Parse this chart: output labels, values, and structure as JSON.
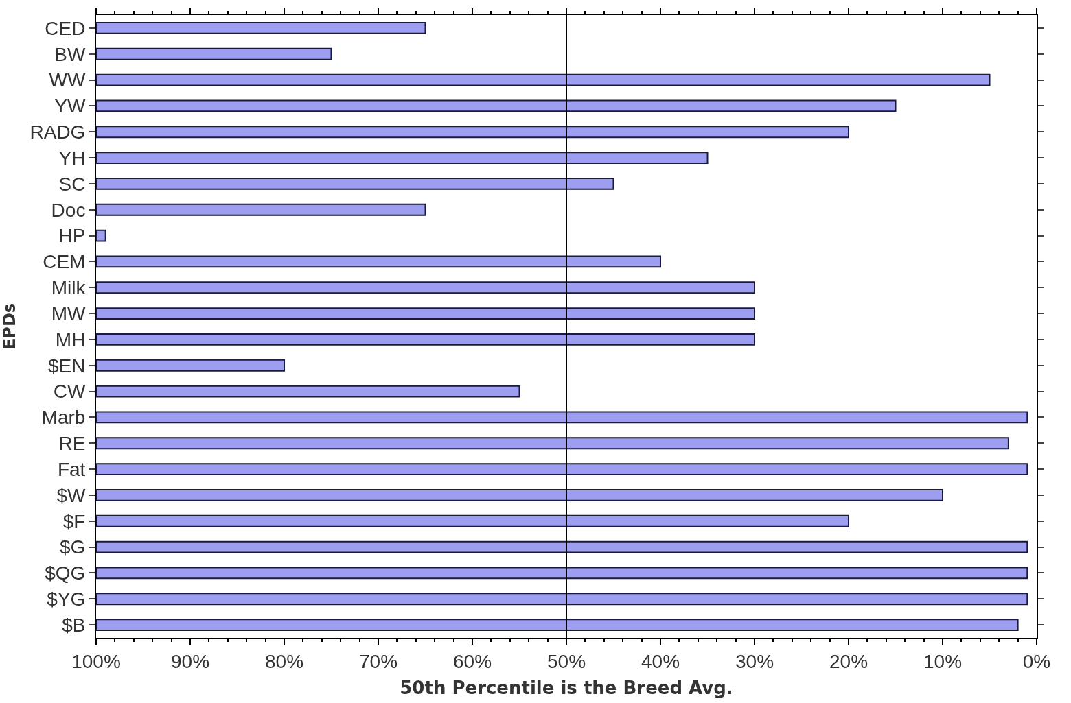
{
  "chart_data": {
    "type": "bar",
    "orientation": "horizontal",
    "xlabel": "50th Percentile is the Breed Avg.",
    "ylabel": "EPDs",
    "categories": [
      "CED",
      "BW",
      "WW",
      "YW",
      "RADG",
      "YH",
      "SC",
      "Doc",
      "HP",
      "CEM",
      "Milk",
      "MW",
      "MH",
      "$EN",
      "CW",
      "Marb",
      "RE",
      "Fat",
      "$W",
      "$F",
      "$G",
      "$QG",
      "$YG",
      "$B"
    ],
    "base": [
      100,
      100,
      100,
      100,
      100,
      100,
      100,
      100,
      100,
      100,
      100,
      100,
      100,
      100,
      100,
      100,
      100,
      100,
      100,
      100,
      100,
      100,
      100,
      100
    ],
    "values": [
      -35,
      -25,
      -95,
      -85,
      -80,
      -65,
      -55,
      -35,
      -1,
      -60,
      -70,
      -70,
      -70,
      -20,
      -45,
      -99,
      -97,
      -99,
      -90,
      -80,
      -99,
      -99,
      -99,
      -98
    ],
    "color": "#9e9ef0",
    "xlim": [
      100,
      0
    ],
    "xticks": [
      {
        "value": 100,
        "label": "100%"
      },
      {
        "value": 90,
        "label": "90%"
      },
      {
        "value": 80,
        "label": "80%"
      },
      {
        "value": 70,
        "label": "70%"
      },
      {
        "value": 60,
        "label": "60%"
      },
      {
        "value": 50,
        "label": "50%"
      },
      {
        "value": 40,
        "label": "40%"
      },
      {
        "value": 30,
        "label": "30%"
      },
      {
        "value": 20,
        "label": "20%"
      },
      {
        "value": 10,
        "label": "10%"
      },
      {
        "value": 0,
        "label": "0%"
      }
    ],
    "ref_lines": [
      {
        "axis": "x",
        "value": 50,
        "color": "#000000"
      }
    ],
    "legend": false
  }
}
